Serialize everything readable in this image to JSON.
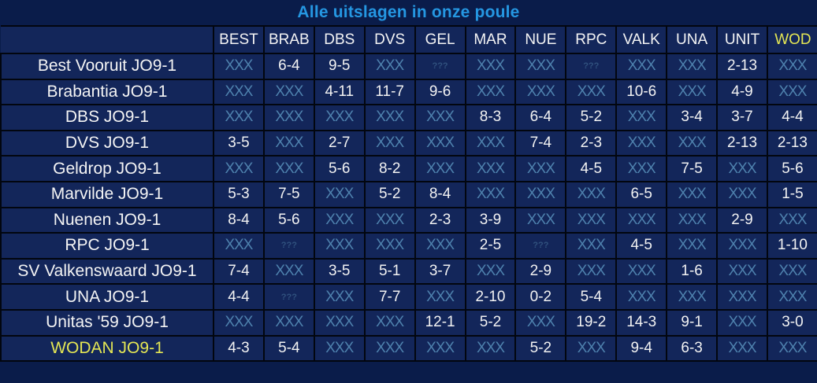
{
  "title": "Alle uitslagen in onze poule",
  "colors": {
    "page_background": "#0a1c4a",
    "cell_background": "#13265a",
    "gridline": "#02060f",
    "title_text": "#2597e2",
    "primary_text": "#f2f2f2",
    "highlight_text": "#e4e654",
    "not_played_text": "#4e81ad",
    "unknown_text": "#30517e"
  },
  "table": {
    "corner_label": "",
    "columns": [
      "BEST",
      "BRAB",
      "DBS",
      "DVS",
      "GEL",
      "MAR",
      "NUE",
      "RPC",
      "VALK",
      "UNA",
      "UNIT",
      "WOD"
    ],
    "highlight_column_index": 11,
    "not_played_marker": "XXX",
    "unknown_marker": "???",
    "rows": [
      {
        "team": "Best Vooruit JO9-1",
        "highlight": false,
        "results": [
          "XXX",
          "6-4",
          "9-5",
          "XXX",
          "???",
          "XXX",
          "XXX",
          "???",
          "XXX",
          "XXX",
          "2-13",
          "XXX"
        ]
      },
      {
        "team": "Brabantia JO9-1",
        "highlight": false,
        "results": [
          "XXX",
          "XXX",
          "4-11",
          "11-7",
          "9-6",
          "XXX",
          "XXX",
          "XXX",
          "10-6",
          "XXX",
          "4-9",
          "XXX"
        ]
      },
      {
        "team": "DBS JO9-1",
        "highlight": false,
        "results": [
          "XXX",
          "XXX",
          "XXX",
          "XXX",
          "XXX",
          "8-3",
          "6-4",
          "5-2",
          "XXX",
          "3-4",
          "3-7",
          "4-4"
        ]
      },
      {
        "team": "DVS JO9-1",
        "highlight": false,
        "results": [
          "3-5",
          "XXX",
          "2-7",
          "XXX",
          "XXX",
          "XXX",
          "7-4",
          "2-3",
          "XXX",
          "XXX",
          "2-13",
          "2-13"
        ]
      },
      {
        "team": "Geldrop JO9-1",
        "highlight": false,
        "results": [
          "XXX",
          "XXX",
          "5-6",
          "8-2",
          "XXX",
          "XXX",
          "XXX",
          "4-5",
          "XXX",
          "7-5",
          "XXX",
          "5-6"
        ]
      },
      {
        "team": "Marvilde JO9-1",
        "highlight": false,
        "results": [
          "5-3",
          "7-5",
          "XXX",
          "5-2",
          "8-4",
          "XXX",
          "XXX",
          "XXX",
          "6-5",
          "XXX",
          "XXX",
          "1-5"
        ]
      },
      {
        "team": "Nuenen JO9-1",
        "highlight": false,
        "results": [
          "8-4",
          "5-6",
          "XXX",
          "XXX",
          "2-3",
          "3-9",
          "XXX",
          "XXX",
          "XXX",
          "XXX",
          "2-9",
          "XXX"
        ]
      },
      {
        "team": "RPC JO9-1",
        "highlight": false,
        "results": [
          "XXX",
          "???",
          "XXX",
          "XXX",
          "XXX",
          "2-5",
          "???",
          "XXX",
          "4-5",
          "XXX",
          "XXX",
          "1-10"
        ]
      },
      {
        "team": "SV Valkenswaard JO9-1",
        "highlight": false,
        "results": [
          "7-4",
          "XXX",
          "3-5",
          "5-1",
          "3-7",
          "XXX",
          "2-9",
          "XXX",
          "XXX",
          "1-6",
          "XXX",
          "XXX"
        ]
      },
      {
        "team": "UNA JO9-1",
        "highlight": false,
        "results": [
          "4-4",
          "???",
          "XXX",
          "7-7",
          "XXX",
          "2-10",
          "0-2",
          "5-4",
          "XXX",
          "XXX",
          "XXX",
          "XXX"
        ]
      },
      {
        "team": "Unitas '59 JO9-1",
        "highlight": false,
        "results": [
          "XXX",
          "XXX",
          "XXX",
          "XXX",
          "12-1",
          "5-2",
          "XXX",
          "19-2",
          "14-3",
          "9-1",
          "XXX",
          "3-0"
        ]
      },
      {
        "team": "WODAN JO9-1",
        "highlight": true,
        "results": [
          "4-3",
          "5-4",
          "XXX",
          "XXX",
          "XXX",
          "XXX",
          "5-2",
          "XXX",
          "9-4",
          "6-3",
          "XXX",
          "XXX"
        ]
      }
    ]
  }
}
